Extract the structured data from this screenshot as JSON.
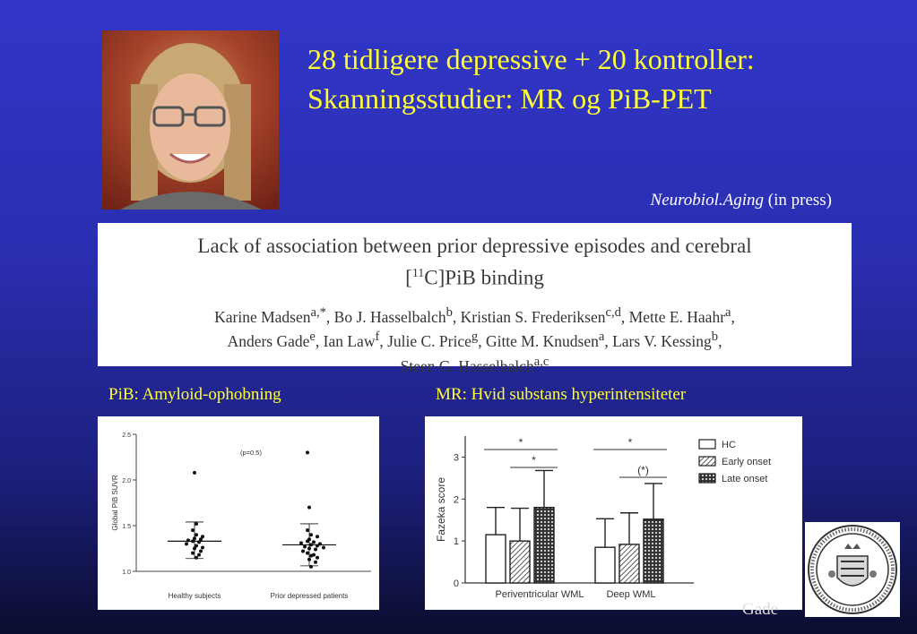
{
  "slide": {
    "title_lines": [
      "28 tidligere depressive + 20 kontroller:",
      "Skanningsstudier: MR og PiB-PET"
    ],
    "citation_journal": "Neurobiol.Aging",
    "citation_status": "(in press)",
    "pib_label": "PiB: Amyloid-ophobning",
    "mr_label": "MR: Hvid substans hyperintensiteter",
    "footer_name": "Gade"
  },
  "paper": {
    "title_line1": "Lack of association between prior depressive episodes and cerebral",
    "title_line2_sup": "11",
    "title_line2_pre": "[",
    "title_line2_post": "C]PiB binding",
    "authors": [
      {
        "name": "Karine Madsen",
        "sup": "a,*",
        "sep": ", "
      },
      {
        "name": "Bo J. Hasselbalch",
        "sup": "b",
        "sep": ", "
      },
      {
        "name": "Kristian S. Frederiksen",
        "sup": "c,d",
        "sep": ", "
      },
      {
        "name": "Mette E. Haahr",
        "sup": "a",
        "sep": ","
      },
      {
        "name": "Anders Gade",
        "sup": "e",
        "sep": ", "
      },
      {
        "name": "Ian Law",
        "sup": "f",
        "sep": ", "
      },
      {
        "name": "Julie C. Price",
        "sup": "g",
        "sep": ", "
      },
      {
        "name": "Gitte M. Knudsen",
        "sup": "a",
        "sep": ", "
      },
      {
        "name": "Lars V. Kessing",
        "sup": "b",
        "sep": ","
      },
      {
        "name": "Steen G. Hasselbalch",
        "sup": "a,c",
        "sep": ""
      }
    ]
  },
  "chart_data": [
    {
      "type": "scatter",
      "ylabel": "Global PiB SUVR",
      "ylim": [
        1.0,
        2.5
      ],
      "yticks": [
        "1.0",
        "1.5",
        "2.0",
        "2.5"
      ],
      "categories": [
        "Healthy subjects",
        "Prior depressed patients"
      ],
      "annotation": "(p=0.5)",
      "series": [
        {
          "points": [
            2.08,
            1.52,
            1.45,
            1.4,
            1.38,
            1.36,
            1.35,
            1.34,
            1.33,
            1.32,
            1.3,
            1.28,
            1.26,
            1.25,
            1.22,
            1.2,
            1.18,
            1.15
          ],
          "mean": 1.33,
          "err_high": 1.54,
          "err_low": 1.14
        },
        {
          "points": [
            2.3,
            1.7,
            1.45,
            1.4,
            1.38,
            1.35,
            1.33,
            1.32,
            1.31,
            1.3,
            1.29,
            1.28,
            1.27,
            1.26,
            1.25,
            1.24,
            1.22,
            1.2,
            1.18,
            1.17,
            1.15,
            1.13,
            1.1,
            1.05
          ],
          "mean": 1.29,
          "err_high": 1.52,
          "err_low": 1.06
        }
      ]
    },
    {
      "type": "bar",
      "ylabel": "Fazeka score",
      "ylim": [
        0,
        3.5
      ],
      "yticks": [
        "0",
        "1",
        "2",
        "3"
      ],
      "categories": [
        "Periventricular WML",
        "Deep WML"
      ],
      "series": [
        {
          "name": "HC",
          "values": [
            1.15,
            0.85
          ],
          "errors": [
            0.65,
            0.68
          ]
        },
        {
          "name": "Early onset",
          "values": [
            1.0,
            0.92
          ],
          "errors": [
            0.78,
            0.75
          ]
        },
        {
          "name": "Late onset",
          "values": [
            1.8,
            1.52
          ],
          "errors": [
            0.88,
            0.85
          ]
        }
      ],
      "annotations": [
        "*",
        "*",
        "*",
        "(*)"
      ]
    }
  ]
}
